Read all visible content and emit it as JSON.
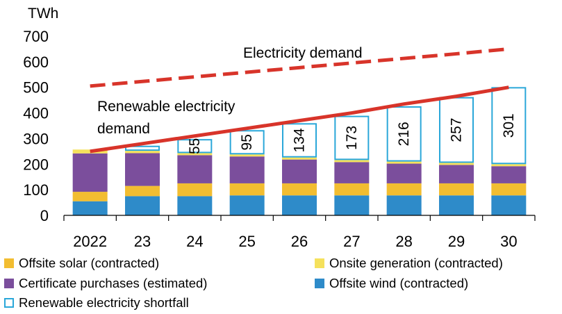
{
  "chart_data": {
    "type": "bar",
    "stacked": true,
    "unit_label": "TWh",
    "categories": [
      "2022",
      "23",
      "24",
      "25",
      "26",
      "27",
      "28",
      "29",
      "30"
    ],
    "ylim": [
      0,
      700
    ],
    "yticks": [
      0,
      100,
      200,
      300,
      400,
      500,
      600,
      700
    ],
    "grid": false,
    "series": [
      {
        "name": "Offsite wind (contracted)",
        "color": "#2e8bc9",
        "values": [
          55,
          75,
          75,
          78,
          78,
          78,
          78,
          78,
          78
        ]
      },
      {
        "name": "Offsite solar (contracted)",
        "color": "#f2bd31",
        "values": [
          37,
          40,
          50,
          47,
          47,
          47,
          47,
          47,
          47
        ]
      },
      {
        "name": "Certificate purchases (estimated)",
        "color": "#7b4e9c",
        "values": [
          150,
          128,
          110,
          105,
          93,
          83,
          77,
          72,
          67
        ]
      },
      {
        "name": "Onsite generation (contracted)",
        "color": "#f5e15c",
        "values": [
          15,
          9,
          8,
          8,
          8,
          8,
          8,
          8,
          8
        ]
      },
      {
        "name": "Renewable electricity shortfall",
        "color": "#2aa7d9",
        "outline": true,
        "values": [
          0,
          20,
          55,
          95,
          134,
          173,
          216,
          257,
          301
        ],
        "labels": [
          "",
          "",
          "55",
          "95",
          "134",
          "173",
          "216",
          "257",
          "301"
        ]
      }
    ],
    "lines": [
      {
        "name": "Electricity demand",
        "style": "dashed",
        "color": "#d8342a",
        "values": [
          505,
          523,
          541,
          559,
          577,
          595,
          613,
          631,
          650
        ]
      },
      {
        "name": "Renewable electricity demand",
        "style": "solid",
        "color": "#d8342a",
        "values": [
          250,
          280,
          310,
          340,
          370,
          400,
          435,
          465,
          500
        ]
      }
    ],
    "annotations": [
      {
        "text": "Electricity demand",
        "near": "dashed-line"
      },
      {
        "lines": [
          "Renewable  electricity",
          "demand"
        ],
        "near": "solid-line"
      }
    ],
    "legend": {
      "placement": "bottom",
      "items": [
        {
          "label": "Offsite solar (contracted)",
          "color": "#f2bd31",
          "outline": false
        },
        {
          "label": "Onsite generation (contracted)",
          "color": "#f5e15c",
          "outline": false
        },
        {
          "label": "Certificate purchases (estimated)",
          "color": "#7b4e9c",
          "outline": false
        },
        {
          "label": "Offsite wind (contracted)",
          "color": "#2e8bc9",
          "outline": false
        },
        {
          "label": "Renewable electricity shortfall",
          "color": "#2aa7d9",
          "outline": true
        }
      ]
    }
  }
}
